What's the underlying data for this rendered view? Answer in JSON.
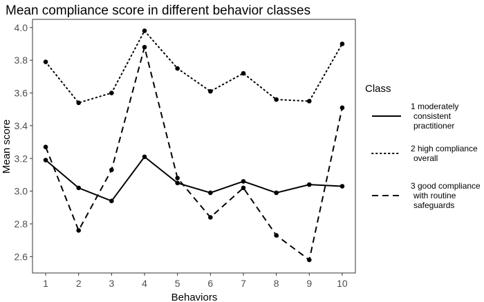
{
  "chart_data": {
    "type": "line",
    "title": "Mean compliance score in different behavior classes",
    "xlabel": "Behaviors",
    "ylabel": "Mean score",
    "x": [
      1,
      2,
      3,
      4,
      5,
      6,
      7,
      8,
      9,
      10
    ],
    "x_tick_labels": [
      "1",
      "2",
      "3",
      "4",
      "5",
      "6",
      "7",
      "8",
      "9",
      "10"
    ],
    "ylim": [
      2.5,
      4.05
    ],
    "y_ticks": [
      2.6,
      2.8,
      3.0,
      3.2,
      3.4,
      3.6,
      3.8,
      4.0
    ],
    "y_tick_labels": [
      "2.6",
      "2.8",
      "3.0",
      "3.2",
      "3.4",
      "3.6",
      "3.8",
      "4.0"
    ],
    "grid": false,
    "legend_title": "Class",
    "legend_position": "right",
    "series": [
      {
        "key": "class1",
        "name_lines": [
          "1 moderately",
          "consistent",
          "practitioner"
        ],
        "line_style": "solid",
        "color": "#000000",
        "values": [
          3.19,
          3.02,
          2.94,
          3.21,
          3.05,
          2.99,
          3.06,
          2.99,
          3.04,
          3.03
        ]
      },
      {
        "key": "class2",
        "name_lines": [
          "2 high compliance",
          "overall"
        ],
        "line_style": "dotted",
        "color": "#000000",
        "values": [
          3.79,
          3.54,
          3.6,
          3.98,
          3.75,
          3.61,
          3.72,
          3.56,
          3.55,
          3.9
        ]
      },
      {
        "key": "class3",
        "name_lines": [
          "3 good compliance",
          "with routine",
          "safeguards"
        ],
        "line_style": "dashed",
        "color": "#000000",
        "values": [
          3.27,
          2.76,
          3.13,
          3.88,
          3.08,
          2.84,
          3.02,
          2.73,
          2.58,
          3.51
        ]
      }
    ]
  }
}
